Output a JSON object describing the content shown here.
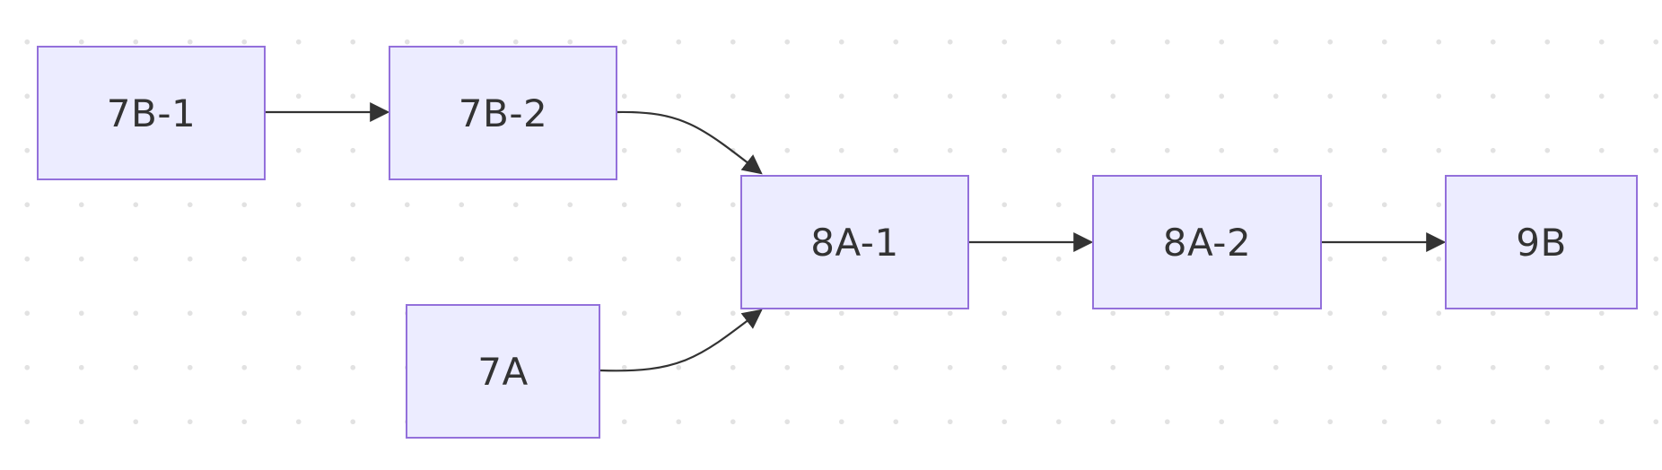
{
  "diagram": {
    "nodes": [
      {
        "id": "n7b1",
        "label": "7B-1"
      },
      {
        "id": "n7b2",
        "label": "7B-2"
      },
      {
        "id": "n7a",
        "label": "7A"
      },
      {
        "id": "n8a1",
        "label": "8A-1"
      },
      {
        "id": "n8a2",
        "label": "8A-2"
      },
      {
        "id": "n9b",
        "label": "9B"
      }
    ],
    "edges": [
      {
        "from": "7B-1",
        "to": "7B-2"
      },
      {
        "from": "7B-2",
        "to": "8A-1"
      },
      {
        "from": "7A",
        "to": "8A-1"
      },
      {
        "from": "8A-1",
        "to": "8A-2"
      },
      {
        "from": "8A-2",
        "to": "9B"
      }
    ],
    "colors": {
      "node_fill": "#ececff",
      "node_border": "#9370db",
      "edge": "#333333",
      "text": "#333333"
    }
  }
}
